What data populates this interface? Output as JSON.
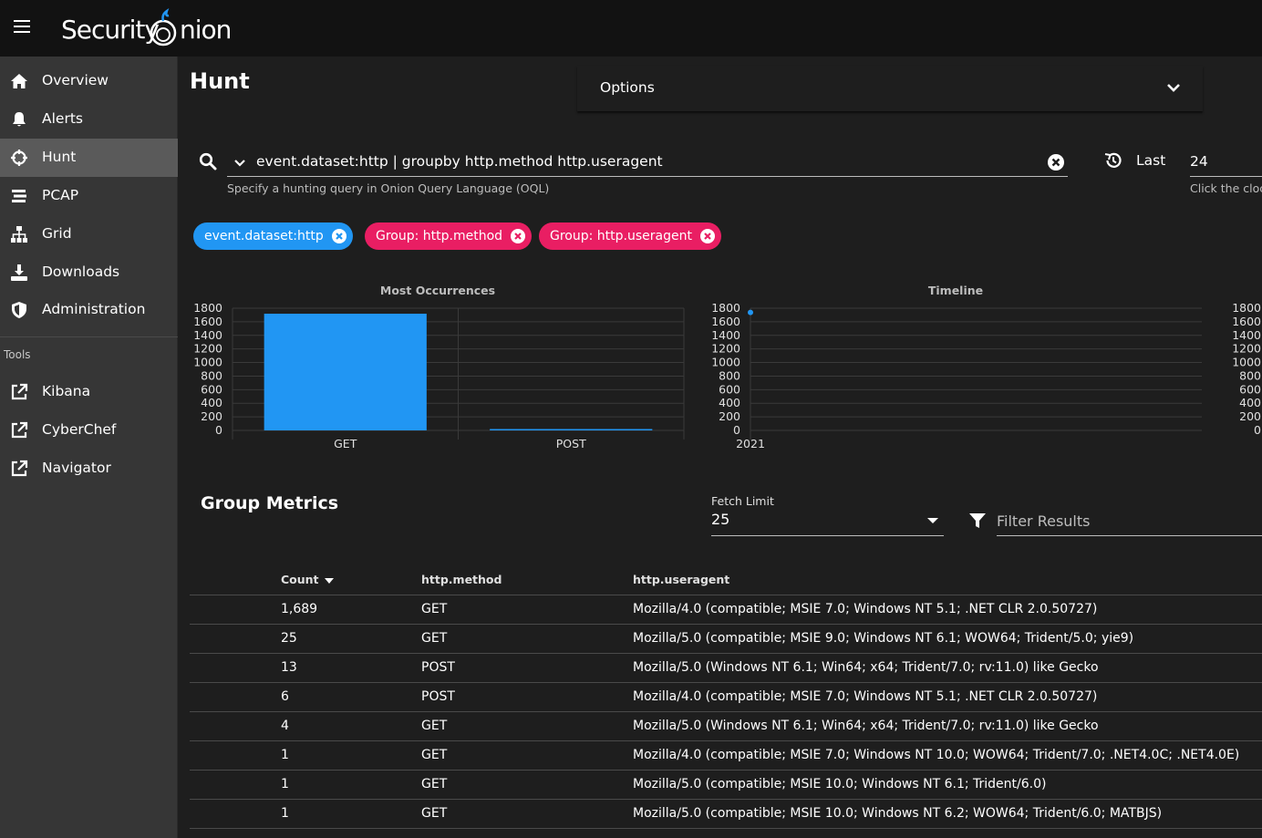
{
  "app": {
    "brand": "Security",
    "brand_suffix": "nion"
  },
  "sidebar": {
    "items": [
      {
        "label": "Overview",
        "icon": "home-icon"
      },
      {
        "label": "Alerts",
        "icon": "bell-icon"
      },
      {
        "label": "Hunt",
        "icon": "crosshairs-icon",
        "active": true
      },
      {
        "label": "PCAP",
        "icon": "stream-icon"
      },
      {
        "label": "Grid",
        "icon": "sitemap-icon"
      },
      {
        "label": "Downloads",
        "icon": "download-icon"
      },
      {
        "label": "Administration",
        "icon": "shield-icon"
      }
    ],
    "tools_label": "Tools",
    "tools": [
      {
        "label": "Kibana",
        "icon": "external-link-icon"
      },
      {
        "label": "CyberChef",
        "icon": "external-link-icon"
      },
      {
        "label": "Navigator",
        "icon": "external-link-icon"
      }
    ]
  },
  "page": {
    "title": "Hunt"
  },
  "options": {
    "label": "Options"
  },
  "search": {
    "query": "event.dataset:http | groupby http.method http.useragent",
    "hint": "Specify a hunting query in Onion Query Language (OQL)"
  },
  "date_range": {
    "label": "Last",
    "value": "24",
    "hint": "Click the clock"
  },
  "chips": [
    {
      "label": "event.dataset:http",
      "color": "#2196f3"
    },
    {
      "label": "Group: http.method",
      "color": "#e91e63"
    },
    {
      "label": "Group: http.useragent",
      "color": "#e91e63"
    }
  ],
  "chart_data": [
    {
      "type": "bar",
      "title": "Most Occurrences",
      "categories": [
        "GET",
        "POST"
      ],
      "values": [
        1719,
        19
      ],
      "ylim": [
        0,
        1800
      ],
      "yticks": [
        "1800",
        "1600",
        "1400",
        "1200",
        "1000",
        "800",
        "600",
        "400",
        "200",
        "0"
      ],
      "color": "#2196f3"
    },
    {
      "type": "scatter",
      "title": "Timeline",
      "x": [
        "2021"
      ],
      "values": [
        1738
      ],
      "ylim": [
        0,
        1800
      ],
      "yticks": [
        "1800",
        "1600",
        "1400",
        "1200",
        "1000",
        "800",
        "600",
        "400",
        "200",
        "0"
      ],
      "color": "#2196f3"
    }
  ],
  "metrics": {
    "title": "Group Metrics",
    "fetch_limit_label": "Fetch Limit",
    "fetch_limit_value": "25",
    "filter_placeholder": "Filter Results",
    "columns": [
      "Count",
      "http.method",
      "http.useragent"
    ],
    "rows": [
      [
        "1,689",
        "GET",
        "Mozilla/4.0 (compatible; MSIE 7.0; Windows NT 5.1; .NET CLR 2.0.50727)"
      ],
      [
        "25",
        "GET",
        "Mozilla/5.0 (compatible; MSIE 9.0; Windows NT 6.1; WOW64; Trident/5.0; yie9)"
      ],
      [
        "13",
        "POST",
        "Mozilla/5.0 (Windows NT 6.1; Win64; x64; Trident/7.0; rv:11.0) like Gecko"
      ],
      [
        "6",
        "POST",
        "Mozilla/4.0 (compatible; MSIE 7.0; Windows NT 5.1; .NET CLR 2.0.50727)"
      ],
      [
        "4",
        "GET",
        "Mozilla/5.0 (Windows NT 6.1; Win64; x64; Trident/7.0; rv:11.0) like Gecko"
      ],
      [
        "1",
        "GET",
        "Mozilla/4.0 (compatible; MSIE 7.0; Windows NT 10.0; WOW64; Trident/7.0; .NET4.0C; .NET4.0E)"
      ],
      [
        "1",
        "GET",
        "Mozilla/5.0 (compatible; MSIE 10.0; Windows NT 6.1; Trident/6.0)"
      ],
      [
        "1",
        "GET",
        "Mozilla/5.0 (compatible; MSIE 10.0; Windows NT 6.2; WOW64; Trident/6.0; MATBJS)"
      ]
    ]
  }
}
